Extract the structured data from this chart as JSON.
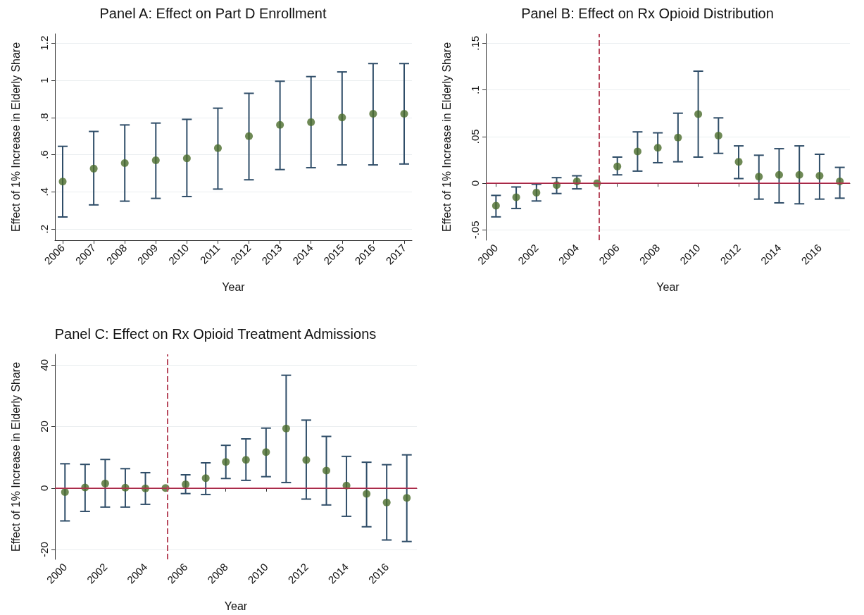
{
  "chart_data": [
    {
      "type": "scatter",
      "title": "Panel A: Effect on Part D Enrollment",
      "xlabel": "Year",
      "ylabel": "Effect of 1% Increase in Elderly Share",
      "x": [
        2006,
        2007,
        2008,
        2009,
        2010,
        2011,
        2012,
        2013,
        2014,
        2015,
        2016,
        2017
      ],
      "series": [
        {
          "color": "#4a6b2a",
          "values": [
            0.455,
            0.525,
            0.555,
            0.57,
            0.58,
            0.635,
            0.7,
            0.76,
            0.775,
            0.8,
            0.82,
            0.82
          ],
          "errors": [
            [
              0.265,
              0.645
            ],
            [
              0.33,
              0.725
            ],
            [
              0.35,
              0.76
            ],
            [
              0.365,
              0.77
            ],
            [
              0.375,
              0.79
            ],
            [
              0.415,
              0.85
            ],
            [
              0.465,
              0.93
            ],
            [
              0.52,
              0.995
            ],
            [
              0.53,
              1.02
            ],
            [
              0.545,
              1.045
            ],
            [
              0.545,
              1.09
            ],
            [
              0.55,
              1.09
            ]
          ]
        }
      ],
      "xlim": [
        2005.75,
        2017.25
      ],
      "xticks": [
        2006,
        2007,
        2008,
        2009,
        2010,
        2011,
        2012,
        2013,
        2014,
        2015,
        2016,
        2017
      ],
      "ylim": [
        0.14,
        1.25
      ],
      "yticks": [
        {
          "value": 0.2,
          "label": ".2"
        },
        {
          "value": 0.4,
          "label": ".4"
        },
        {
          "value": 0.6,
          "label": ".6"
        },
        {
          "value": 0.8,
          "label": ".8"
        },
        1,
        {
          "value": 1.2,
          "label": "1.2"
        }
      ],
      "grid": "y",
      "marker": "circle"
    },
    {
      "type": "scatter",
      "title": "Panel B: Effect on Rx Opioid Distribution",
      "xlabel": "Year",
      "ylabel": "Effect of 1% Increase in Elderly Share",
      "x": [
        2000,
        2001,
        2002,
        2003,
        2004,
        2005,
        2006,
        2007,
        2008,
        2009,
        2010,
        2011,
        2012,
        2013,
        2014,
        2015,
        2016,
        2017
      ],
      "series": [
        {
          "color": "#4a6b2a",
          "values": [
            -0.024,
            -0.015,
            -0.01,
            -0.002,
            0.002,
            0,
            0.018,
            0.034,
            0.038,
            0.049,
            0.074,
            0.051,
            0.023,
            0.007,
            0.009,
            0.009,
            0.008,
            0.002
          ],
          "errors": [
            [
              -0.036,
              -0.013
            ],
            [
              -0.027,
              -0.004
            ],
            [
              -0.019,
              -0.001
            ],
            [
              -0.011,
              0.006
            ],
            [
              -0.006,
              0.008
            ],
            null,
            [
              0.009,
              0.028
            ],
            [
              0.013,
              0.055
            ],
            [
              0.022,
              0.054
            ],
            [
              0.023,
              0.075
            ],
            [
              0.028,
              0.12
            ],
            [
              0.032,
              0.07
            ],
            [
              0.005,
              0.04
            ],
            [
              -0.017,
              0.03
            ],
            [
              -0.021,
              0.037
            ],
            [
              -0.022,
              0.04
            ],
            [
              -0.017,
              0.031
            ],
            [
              -0.016,
              0.017
            ]
          ]
        }
      ],
      "xlim": [
        1999.5,
        2017.5
      ],
      "xticks": [
        2000,
        2002,
        2004,
        2006,
        2008,
        2010,
        2012,
        2014,
        2016
      ],
      "ylim": [
        -0.061,
        0.16
      ],
      "yticks": [
        {
          "value": -0.05,
          "label": "-.05"
        },
        0,
        {
          "value": 0.05,
          "label": ".05"
        },
        {
          "value": 0.1,
          "label": ".1"
        },
        {
          "value": 0.15,
          "label": ".15"
        }
      ],
      "ref_lines": [
        {
          "axis": "y",
          "value": 0,
          "color": "#c8294f",
          "line_style": "solid"
        },
        {
          "axis": "x",
          "value": 2005.1,
          "color": "#b84a5e",
          "line_style": "dashed"
        }
      ],
      "grid": "y",
      "marker": "circle"
    },
    {
      "type": "scatter",
      "title": "Panel C: Effect on Rx Opioid Treatment Admissions",
      "xlabel": "Year",
      "ylabel": "Effect of 1% Increase in Elderly Share",
      "x": [
        2000,
        2001,
        2002,
        2003,
        2004,
        2005,
        2006,
        2007,
        2008,
        2009,
        2010,
        2011,
        2012,
        2013,
        2014,
        2015,
        2016,
        2017
      ],
      "series": [
        {
          "color": "#4a6b2a",
          "values": [
            -1.3,
            0.2,
            1.5,
            0.1,
            -0.1,
            0,
            1.2,
            3.2,
            8.5,
            9.2,
            11.7,
            19.4,
            9.1,
            5.7,
            0.8,
            -1.9,
            -4.7,
            -3.2
          ],
          "errors": [
            [
              -10.7,
              7.9
            ],
            [
              -7.6,
              7.7
            ],
            [
              -6.2,
              9.3
            ],
            [
              -6.2,
              6.3
            ],
            [
              -5.3,
              5.0
            ],
            null,
            [
              -1.8,
              4.3
            ],
            [
              -2.1,
              8.2
            ],
            [
              3.1,
              13.9
            ],
            [
              2.5,
              16.0
            ],
            [
              3.7,
              19.5
            ],
            [
              1.8,
              36.7
            ],
            [
              -3.6,
              22.1
            ],
            [
              -5.5,
              16.8
            ],
            [
              -9.2,
              10.3
            ],
            [
              -12.6,
              8.4
            ],
            [
              -16.9,
              7.6
            ],
            [
              -17.4,
              10.8
            ]
          ]
        }
      ],
      "xlim": [
        1999.5,
        2017.5
      ],
      "xticks": [
        2000,
        2002,
        2004,
        2006,
        2008,
        2010,
        2012,
        2014,
        2016
      ],
      "ylim": [
        -23.2,
        43.5
      ],
      "yticks": [
        -20,
        0,
        20,
        40
      ],
      "ref_lines": [
        {
          "axis": "y",
          "value": 0,
          "color": "#c8294f",
          "line_style": "solid"
        },
        {
          "axis": "x",
          "value": 2005.1,
          "color": "#b84a5e",
          "line_style": "dashed"
        }
      ],
      "grid": "y",
      "marker": "circle"
    }
  ]
}
